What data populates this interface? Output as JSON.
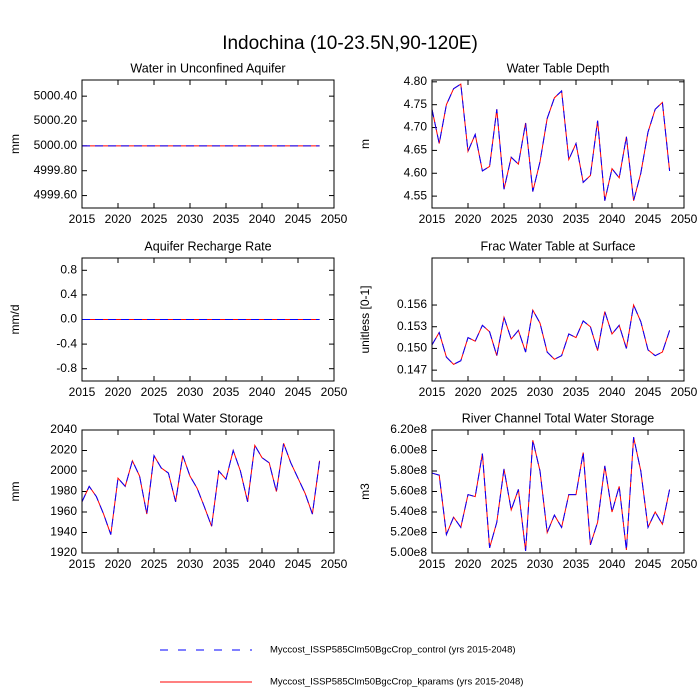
{
  "title": "Indochina (10-23.5N,90-120E)",
  "legend": [
    {
      "name": "Myccost_ISSP585Clm50BgcCrop_control (yrs 2015-2048)",
      "color": "#0000ff",
      "dash": true
    },
    {
      "name": "Myccost_ISSP585Clm50BgcCrop_kparams (yrs 2015-2048)",
      "color": "#ff0000",
      "dash": false
    }
  ],
  "chart_data": [
    {
      "type": "line",
      "title": "Water in Unconfined Aquifer",
      "ylabel": "mm",
      "x": [
        2015,
        2016,
        2017,
        2018,
        2019,
        2020,
        2021,
        2022,
        2023,
        2024,
        2025,
        2026,
        2027,
        2028,
        2029,
        2030,
        2031,
        2032,
        2033,
        2034,
        2035,
        2036,
        2037,
        2038,
        2039,
        2040,
        2041,
        2042,
        2043,
        2044,
        2045,
        2046,
        2047,
        2048
      ],
      "xlim": [
        2015,
        2050
      ],
      "xticks": [
        2015,
        2020,
        2025,
        2030,
        2035,
        2040,
        2045,
        2050
      ],
      "ylim": [
        4999.5,
        5000.53
      ],
      "yticks": [
        {
          "value": 4999.6,
          "label": "4999.60"
        },
        {
          "value": 4999.8,
          "label": "4999.80"
        },
        {
          "value": 5000,
          "label": "5000.00"
        },
        {
          "value": 5000.2,
          "label": "5000.20"
        },
        {
          "value": 5000.4,
          "label": "5000.40"
        }
      ],
      "series": [
        {
          "values": [
            5000,
            5000,
            5000,
            5000,
            5000,
            5000,
            5000,
            5000,
            5000,
            5000,
            5000,
            5000,
            5000,
            5000,
            5000,
            5000,
            5000,
            5000,
            5000,
            5000,
            5000,
            5000,
            5000,
            5000,
            5000,
            5000,
            5000,
            5000,
            5000,
            5000,
            5000,
            5000,
            5000,
            5000
          ]
        },
        {
          "values": [
            5000,
            5000,
            5000,
            5000,
            5000,
            5000,
            5000,
            5000,
            5000,
            5000,
            5000,
            5000,
            5000,
            5000,
            5000,
            5000,
            5000,
            5000,
            5000,
            5000,
            5000,
            5000,
            5000,
            5000,
            5000,
            5000,
            5000,
            5000,
            5000,
            5000,
            5000,
            5000,
            5000,
            5000
          ]
        }
      ]
    },
    {
      "type": "line",
      "title": "Water Table Depth",
      "ylabel": "m",
      "x": [
        2015,
        2016,
        2017,
        2018,
        2019,
        2020,
        2021,
        2022,
        2023,
        2024,
        2025,
        2026,
        2027,
        2028,
        2029,
        2030,
        2031,
        2032,
        2033,
        2034,
        2035,
        2036,
        2037,
        2038,
        2039,
        2040,
        2041,
        2042,
        2043,
        2044,
        2045,
        2046,
        2047,
        2048
      ],
      "xlim": [
        2015,
        2050
      ],
      "xticks": [
        2015,
        2020,
        2025,
        2030,
        2035,
        2040,
        2045,
        2050
      ],
      "ylim": [
        4.524,
        4.804
      ],
      "yticks": [
        4.55,
        {
          "value": 4.6,
          "label": "4.60"
        },
        4.65,
        {
          "value": 4.7,
          "label": "4.70"
        },
        4.75,
        {
          "value": 4.8,
          "label": "4.80"
        }
      ],
      "series": [
        {
          "values": [
            4.74,
            4.665,
            4.75,
            4.785,
            4.795,
            4.648,
            4.685,
            4.605,
            4.615,
            4.74,
            4.565,
            4.635,
            4.62,
            4.71,
            4.56,
            4.625,
            4.72,
            4.765,
            4.78,
            4.63,
            4.665,
            4.58,
            4.595,
            4.715,
            4.54,
            4.61,
            4.59,
            4.68,
            4.54,
            4.6,
            4.69,
            4.74,
            4.755,
            4.605
          ]
        },
        {
          "values": [
            4.74,
            4.665,
            4.75,
            4.785,
            4.795,
            4.648,
            4.685,
            4.605,
            4.615,
            4.74,
            4.565,
            4.635,
            4.62,
            4.71,
            4.56,
            4.625,
            4.72,
            4.765,
            4.78,
            4.63,
            4.665,
            4.58,
            4.595,
            4.715,
            4.54,
            4.61,
            4.59,
            4.68,
            4.54,
            4.6,
            4.69,
            4.74,
            4.755,
            4.605
          ]
        }
      ]
    },
    {
      "type": "line",
      "title": "Aquifer Recharge Rate",
      "ylabel": "mm/d",
      "x": [
        2015,
        2016,
        2017,
        2018,
        2019,
        2020,
        2021,
        2022,
        2023,
        2024,
        2025,
        2026,
        2027,
        2028,
        2029,
        2030,
        2031,
        2032,
        2033,
        2034,
        2035,
        2036,
        2037,
        2038,
        2039,
        2040,
        2041,
        2042,
        2043,
        2044,
        2045,
        2046,
        2047,
        2048
      ],
      "xlim": [
        2015,
        2050
      ],
      "xticks": [
        2015,
        2020,
        2025,
        2030,
        2035,
        2040,
        2045,
        2050
      ],
      "ylim": [
        -1,
        1
      ],
      "yticks": [
        -0.8,
        -0.4,
        {
          "value": 0,
          "label": "0.0"
        },
        0.4,
        0.8
      ],
      "series": [
        {
          "values": [
            0,
            0,
            0,
            0,
            0,
            0,
            0,
            0,
            0,
            0,
            0,
            0,
            0,
            0,
            0,
            0,
            0,
            0,
            0,
            0,
            0,
            0,
            0,
            0,
            0,
            0,
            0,
            0,
            0,
            0,
            0,
            0,
            0,
            0
          ]
        },
        {
          "values": [
            0,
            0,
            0,
            0,
            0,
            0,
            0,
            0,
            0,
            0,
            0,
            0,
            0,
            0,
            0,
            0,
            0,
            0,
            0,
            0,
            0,
            0,
            0,
            0,
            0,
            0,
            0,
            0,
            0,
            0,
            0,
            0,
            0,
            0
          ]
        }
      ]
    },
    {
      "type": "line",
      "title": "Frac Water Table at Surface",
      "ylabel": "unitless [0-1]",
      "x": [
        2015,
        2016,
        2017,
        2018,
        2019,
        2020,
        2021,
        2022,
        2023,
        2024,
        2025,
        2026,
        2027,
        2028,
        2029,
        2030,
        2031,
        2032,
        2033,
        2034,
        2035,
        2036,
        2037,
        2038,
        2039,
        2040,
        2041,
        2042,
        2043,
        2044,
        2045,
        2046,
        2047,
        2048
      ],
      "xlim": [
        2015,
        2050
      ],
      "xticks": [
        2015,
        2020,
        2025,
        2030,
        2035,
        2040,
        2045,
        2050
      ],
      "ylim": [
        0.1455,
        0.1625
      ],
      "yticks": [
        0.147,
        {
          "value": 0.15,
          "label": "0.150"
        },
        0.153,
        0.156
      ],
      "series": [
        {
          "values": [
            0.1505,
            0.1522,
            0.1488,
            0.1478,
            0.1483,
            0.1515,
            0.151,
            0.1532,
            0.1523,
            0.149,
            0.1543,
            0.1513,
            0.1525,
            0.1495,
            0.1553,
            0.1535,
            0.1495,
            0.1485,
            0.149,
            0.152,
            0.1515,
            0.1538,
            0.153,
            0.1497,
            0.1551,
            0.152,
            0.1532,
            0.15,
            0.156,
            0.1537,
            0.1498,
            0.149,
            0.1495,
            0.1525
          ]
        },
        {
          "values": [
            0.1505,
            0.1522,
            0.1488,
            0.1478,
            0.1483,
            0.1515,
            0.151,
            0.1532,
            0.1523,
            0.149,
            0.1543,
            0.1513,
            0.1525,
            0.1495,
            0.1553,
            0.1535,
            0.1495,
            0.1485,
            0.149,
            0.152,
            0.1515,
            0.1538,
            0.153,
            0.1497,
            0.1551,
            0.152,
            0.1532,
            0.15,
            0.156,
            0.1537,
            0.1498,
            0.149,
            0.1495,
            0.1525
          ]
        }
      ]
    },
    {
      "type": "line",
      "title": "Total Water Storage",
      "ylabel": "mm",
      "x": [
        2015,
        2016,
        2017,
        2018,
        2019,
        2020,
        2021,
        2022,
        2023,
        2024,
        2025,
        2026,
        2027,
        2028,
        2029,
        2030,
        2031,
        2032,
        2033,
        2034,
        2035,
        2036,
        2037,
        2038,
        2039,
        2040,
        2041,
        2042,
        2043,
        2044,
        2045,
        2046,
        2047,
        2048
      ],
      "xlim": [
        2015,
        2050
      ],
      "xticks": [
        2015,
        2020,
        2025,
        2030,
        2035,
        2040,
        2045,
        2050
      ],
      "ylim": [
        1920,
        2040
      ],
      "yticks": [
        1920,
        1940,
        1960,
        1980,
        2000,
        2020,
        2040
      ],
      "series": [
        {
          "values": [
            1970,
            1985,
            1975,
            1958,
            1938,
            1993,
            1985,
            2010,
            1995,
            1958,
            2015,
            2003,
            1998,
            1970,
            2015,
            1995,
            1983,
            1965,
            1946,
            2000,
            1992,
            2020,
            2000,
            1970,
            2025,
            2013,
            2008,
            1980,
            2027,
            2008,
            1993,
            1978,
            1958,
            2010
          ]
        },
        {
          "values": [
            1970,
            1985,
            1975,
            1958,
            1938,
            1993,
            1985,
            2010,
            1995,
            1958,
            2015,
            2003,
            1998,
            1970,
            2015,
            1995,
            1983,
            1965,
            1946,
            2000,
            1992,
            2020,
            2000,
            1970,
            2025,
            2013,
            2008,
            1980,
            2027,
            2008,
            1993,
            1978,
            1958,
            2010
          ]
        }
      ]
    },
    {
      "type": "line",
      "title": "River Channel Total Water Storage",
      "ylabel": "m3",
      "x": [
        2015,
        2016,
        2017,
        2018,
        2019,
        2020,
        2021,
        2022,
        2023,
        2024,
        2025,
        2026,
        2027,
        2028,
        2029,
        2030,
        2031,
        2032,
        2033,
        2034,
        2035,
        2036,
        2037,
        2038,
        2039,
        2040,
        2041,
        2042,
        2043,
        2044,
        2045,
        2046,
        2047,
        2048
      ],
      "xlim": [
        2015,
        2050
      ],
      "xticks": [
        2015,
        2020,
        2025,
        2030,
        2035,
        2040,
        2045,
        2050
      ],
      "ylim": [
        500000000,
        620000000
      ],
      "yticks": [
        {
          "value": 500000000,
          "label": "5.00e8"
        },
        {
          "value": 520000000,
          "label": "5.20e8"
        },
        {
          "value": 540000000,
          "label": "5.40e8"
        },
        {
          "value": 560000000,
          "label": "5.60e8"
        },
        {
          "value": 580000000,
          "label": "5.80e8"
        },
        {
          "value": 600000000,
          "label": "6.00e8"
        },
        {
          "value": 620000000,
          "label": "6.20e8"
        }
      ],
      "series": [
        {
          "values": [
            578000000,
            576000000,
            518000000,
            535000000,
            525000000,
            557000000,
            555000000,
            597000000,
            505000000,
            530000000,
            582000000,
            542000000,
            562000000,
            502000000,
            610000000,
            580000000,
            520000000,
            537000000,
            525000000,
            557000000,
            557000000,
            598000000,
            508000000,
            530000000,
            585000000,
            540000000,
            565000000,
            503000000,
            613000000,
            580000000,
            525000000,
            540000000,
            528000000,
            562000000
          ]
        },
        {
          "values": [
            578000000,
            576000000,
            518000000,
            535000000,
            525000000,
            557000000,
            555000000,
            597000000,
            505000000,
            530000000,
            582000000,
            542000000,
            562000000,
            502000000,
            610000000,
            580000000,
            520000000,
            537000000,
            525000000,
            557000000,
            557000000,
            598000000,
            508000000,
            530000000,
            585000000,
            540000000,
            565000000,
            503000000,
            613000000,
            580000000,
            525000000,
            540000000,
            528000000,
            562000000
          ]
        }
      ]
    }
  ]
}
